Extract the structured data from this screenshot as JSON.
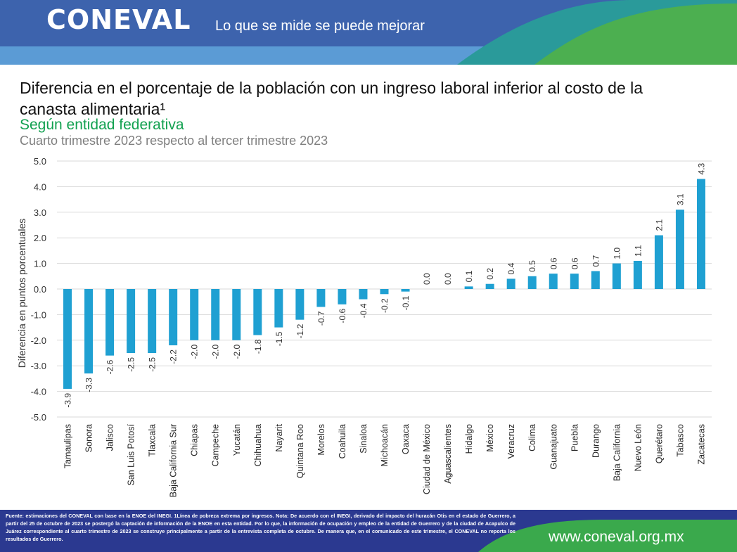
{
  "header": {
    "logo_text": "CONEVAL",
    "tagline": "Lo que se mide se puede mejorar"
  },
  "title": "Diferencia en el porcentaje de la población con un ingreso laboral inferior al costo de la canasta alimentaria¹",
  "subtitle": "Según entidad federativa",
  "period": "Cuarto trimestre 2023 respecto al tercer trimestre 2023",
  "colors": {
    "header_blue": "#3d63ad",
    "header_light_blue": "#5b9bd5",
    "header_teal": "#2a9a9a",
    "header_green": "#4caf50",
    "footer_navy": "#2b3990",
    "footer_green": "#3aa94c",
    "bar": "#1fa0d2",
    "subtitle_green": "#12a150"
  },
  "chart_data": {
    "type": "bar",
    "ylabel": "Diferencia en puntos porcentuales",
    "xlabel": "",
    "ylim": [
      -5.0,
      5.0
    ],
    "yticks": [
      "5.0",
      "4.0",
      "3.0",
      "2.0",
      "1.0",
      "0.0",
      "-1.0",
      "-2.0",
      "-3.0",
      "-4.0",
      "-5.0"
    ],
    "grid": true,
    "categories": [
      "Tamaulipas",
      "Sonora",
      "Jalisco",
      "San Luis Potosí",
      "Tlaxcala",
      "Baja California Sur",
      "Chiapas",
      "Campeche",
      "Yucatán",
      "Chihuahua",
      "Nayarit",
      "Quintana Roo",
      "Morelos",
      "Coahuila",
      "Sinaloa",
      "Michoacán",
      "Oaxaca",
      "Ciudad de México",
      "Aguascalientes",
      "Hidalgo",
      "México",
      "Veracruz",
      "Colima",
      "Guanajuato",
      "Puebla",
      "Durango",
      "Baja California",
      "Nuevo León",
      "Querétaro",
      "Tabasco",
      "Zacatecas"
    ],
    "values": [
      -3.9,
      -3.3,
      -2.6,
      -2.5,
      -2.5,
      -2.2,
      -2.0,
      -2.0,
      -2.0,
      -1.8,
      -1.5,
      -1.2,
      -0.7,
      -0.6,
      -0.4,
      -0.2,
      -0.1,
      0.0,
      0.0,
      0.1,
      0.2,
      0.4,
      0.5,
      0.6,
      0.6,
      0.7,
      1.0,
      1.1,
      2.1,
      3.1,
      4.3
    ],
    "labels": [
      "-3.9",
      "-3.3",
      "-2.6",
      "-2.5",
      "-2.5",
      "-2.2",
      "-2.0",
      "-2.0",
      "-2.0",
      "-1.8",
      "-1.5",
      "-1.2",
      "-0.7",
      "-0.6",
      "-0.4",
      "-0.2",
      "-0.1",
      "0.0",
      "0.0",
      "0.1",
      "0.2",
      "0.4",
      "0.5",
      "0.6",
      "0.6",
      "0.7",
      "1.0",
      "1.1",
      "2.1",
      "3.1",
      "4.3"
    ]
  },
  "footer": {
    "note": "Fuente: estimaciones del CONEVAL con base en la ENOE del INEGI. 1Línea de pobreza extrema por ingresos. Nota: De acuerdo con el INEGI, derivado del impacto del huracán Otis en el estado de Guerrero, a partir del 25 de octubre de 2023 se postergó la captación de información de la ENOE en esta entidad. Por lo que, la información de ocupación y empleo de la entidad de Guerrero y de la ciudad de Acapulco de Juárez correspondiente al cuarto trimestre de 2023 se construye principalmente a partir de la entrevista completa de octubre. De manera que, en el comunicado de este trimestre, el CONEVAL no reporta los resultados de Guerrero.",
    "url": "www.coneval.org.mx"
  }
}
